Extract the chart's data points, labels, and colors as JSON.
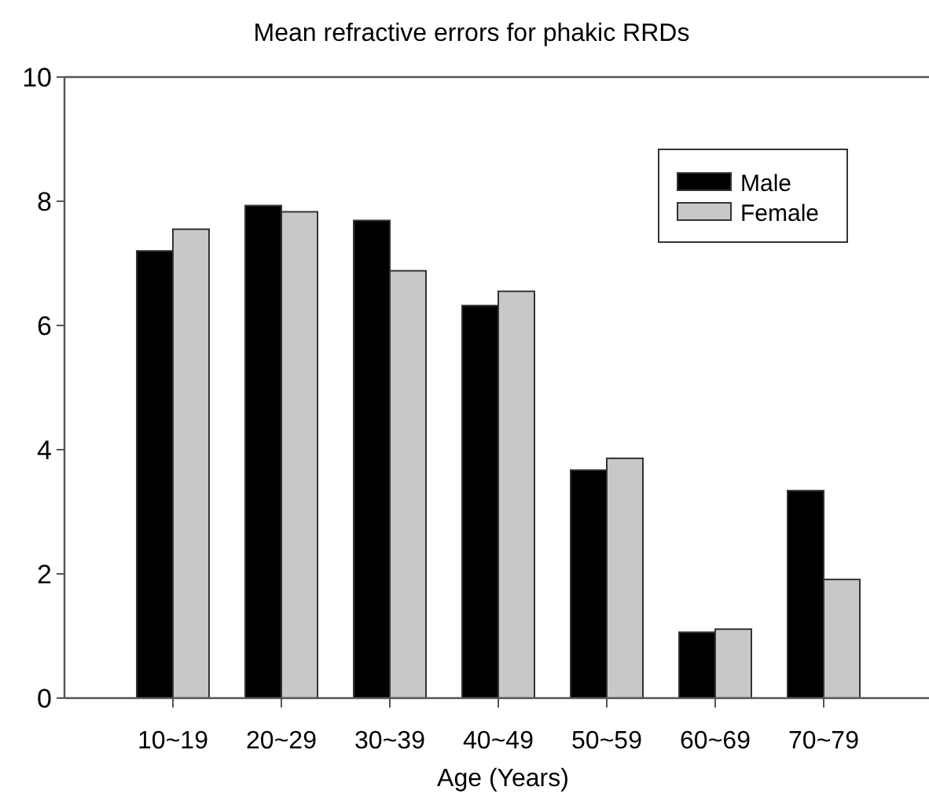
{
  "chart_data": {
    "type": "bar",
    "title": "Mean refractive errors for phakic RRDs",
    "xlabel": "Age (Years)",
    "categories": [
      "10~19",
      "20~29",
      "30~39",
      "40~49",
      "50~59",
      "60~69",
      "70~79"
    ],
    "series": [
      {
        "name": "Male",
        "color": "#000000",
        "values": [
          7.2,
          7.93,
          7.69,
          6.32,
          3.67,
          1.06,
          3.34
        ]
      },
      {
        "name": "Female",
        "color": "#c8c8c8",
        "values": [
          7.55,
          7.83,
          6.88,
          6.55,
          3.86,
          1.11,
          1.91
        ]
      }
    ],
    "ylim": [
      0,
      10
    ],
    "yticks": [
      0,
      2,
      4,
      6,
      8,
      10
    ],
    "grid": false,
    "legend": "top right"
  }
}
